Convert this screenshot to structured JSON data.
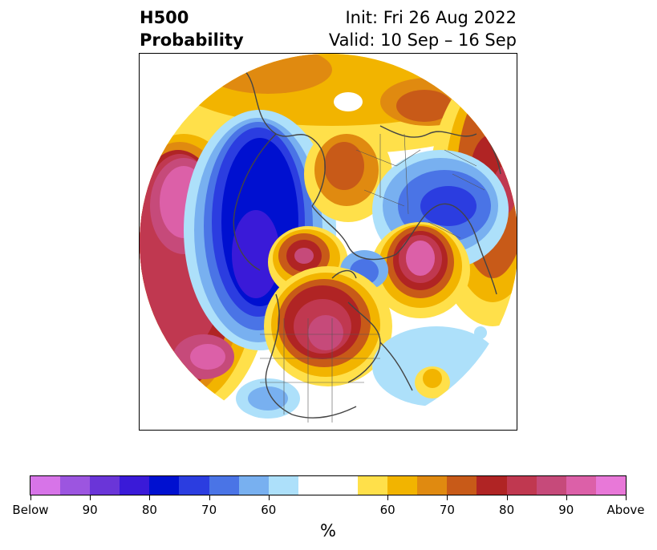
{
  "header": {
    "title_line1": "H500",
    "title_line2": "Probability",
    "init": "Init: Fri 26 Aug 2022",
    "valid": "Valid: 10 Sep – 16 Sep"
  },
  "colorbar": {
    "colors": [
      "#d774e8",
      "#9c55e0",
      "#6a35d8",
      "#3a1ad8",
      "#0010d0",
      "#2b3de0",
      "#4a74e6",
      "#78b0f0",
      "#ade0fa",
      "#ffffff",
      "#ffffff",
      "#ffe04a",
      "#f2b400",
      "#e08a10",
      "#c85a18",
      "#b02424",
      "#c03850",
      "#c64a7a",
      "#dc60a8",
      "#e878d8"
    ],
    "tick_labels": [
      "Below",
      "90",
      "80",
      "70",
      "60",
      "60",
      "70",
      "80",
      "90",
      "Above"
    ],
    "units": "%"
  },
  "map": {
    "colors": {
      "deep_blue": "#0010d0",
      "blue": "#2b3de0",
      "mid_blue": "#4a74e6",
      "light_blue": "#78b0f0",
      "pale_blue": "#ade0fa",
      "yellow": "#ffe04a",
      "gold": "#f2b400",
      "orange": "#e08a10",
      "dark_orange": "#c85a18",
      "red": "#b02424",
      "crimson": "#c03850",
      "rose": "#c64a7a",
      "pink": "#dc60a8",
      "coast": "#444444"
    }
  }
}
